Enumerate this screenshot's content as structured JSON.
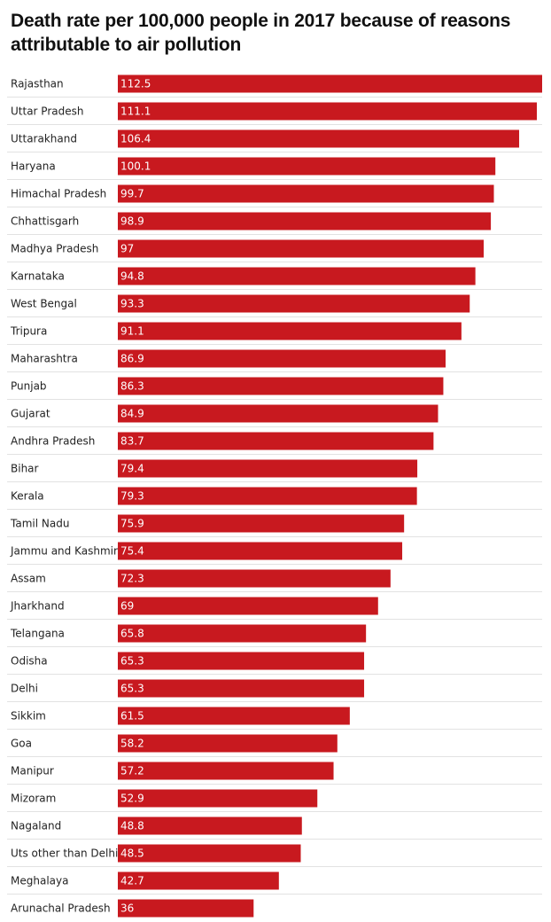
{
  "chart_data": {
    "type": "bar",
    "orientation": "horizontal",
    "title": "Death rate per 100,000 people in 2017 because of reasons attributable to air pollution",
    "xlabel": "",
    "ylabel": "",
    "xlim": [
      0,
      112.5
    ],
    "bar_color": "#c8191f",
    "categories": [
      "Rajasthan",
      "Uttar Pradesh",
      "Uttarakhand",
      "Haryana",
      "Himachal Pradesh",
      "Chhattisgarh",
      "Madhya Pradesh",
      "Karnataka",
      "West Bengal",
      "Tripura",
      "Maharashtra",
      "Punjab",
      "Gujarat",
      "Andhra Pradesh",
      "Bihar",
      "Kerala",
      "Tamil Nadu",
      "Jammu and Kashmir",
      "Assam",
      "Jharkhand",
      "Telangana",
      "Odisha",
      "Delhi",
      "Sikkim",
      "Goa",
      "Manipur",
      "Mizoram",
      "Nagaland",
      "Uts other than Delhi",
      "Meghalaya",
      "Arunachal Pradesh"
    ],
    "values": [
      112.5,
      111.1,
      106.4,
      100.1,
      99.7,
      98.9,
      97,
      94.8,
      93.3,
      91.1,
      86.9,
      86.3,
      84.9,
      83.7,
      79.4,
      79.3,
      75.9,
      75.4,
      72.3,
      69,
      65.8,
      65.3,
      65.3,
      61.5,
      58.2,
      57.2,
      52.9,
      48.8,
      48.5,
      42.7,
      36
    ]
  }
}
